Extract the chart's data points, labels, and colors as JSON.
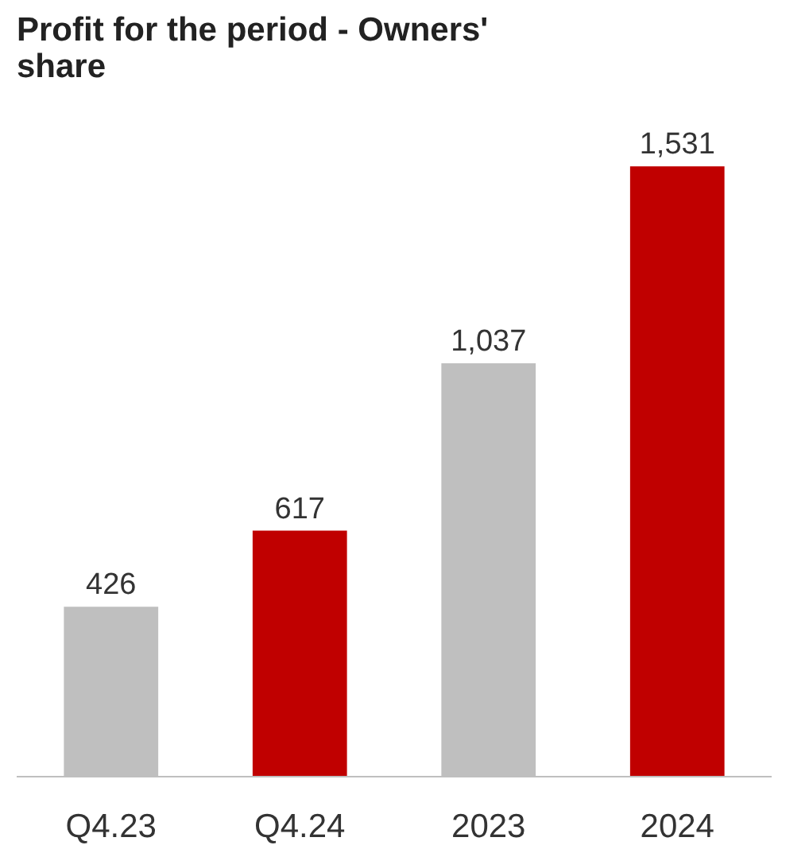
{
  "chart_data": {
    "type": "bar",
    "title": "Profit for the period - Owners'\nshare",
    "categories": [
      "Q4.23",
      "Q4.24",
      "2023",
      "2024"
    ],
    "values": [
      426,
      617,
      1037,
      1531
    ],
    "colors": [
      "#bfbfbf",
      "#c00000",
      "#bfbfbf",
      "#c00000"
    ],
    "value_labels": [
      "426",
      "617",
      "1,037",
      "1,531"
    ],
    "grid": false
  }
}
